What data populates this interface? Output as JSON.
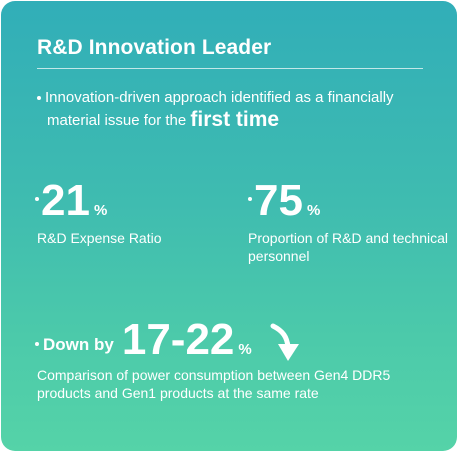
{
  "card": {
    "title": "R&D Innovation Leader",
    "intro": {
      "line1": "Innovation-driven approach identified as a financially",
      "line2_prefix": "material issue for the ",
      "line2_emphasis": "first time"
    },
    "stats": [
      {
        "value": "21",
        "unit": "%",
        "description": "R&D Expense Ratio"
      },
      {
        "value": "75",
        "unit": "%",
        "description": "Proportion of R&D and technical personnel"
      },
      {
        "label": "Down by",
        "value": "17-22",
        "unit": "%",
        "description": "Comparison of power consumption between Gen4 DDR5 products and Gen1 products at the same rate"
      }
    ]
  },
  "icons": {
    "trend": "down-arrow-icon"
  },
  "colors": {
    "gradient_top": "#31aeb8",
    "gradient_bottom": "#55d3a8",
    "text": "#ffffff"
  }
}
